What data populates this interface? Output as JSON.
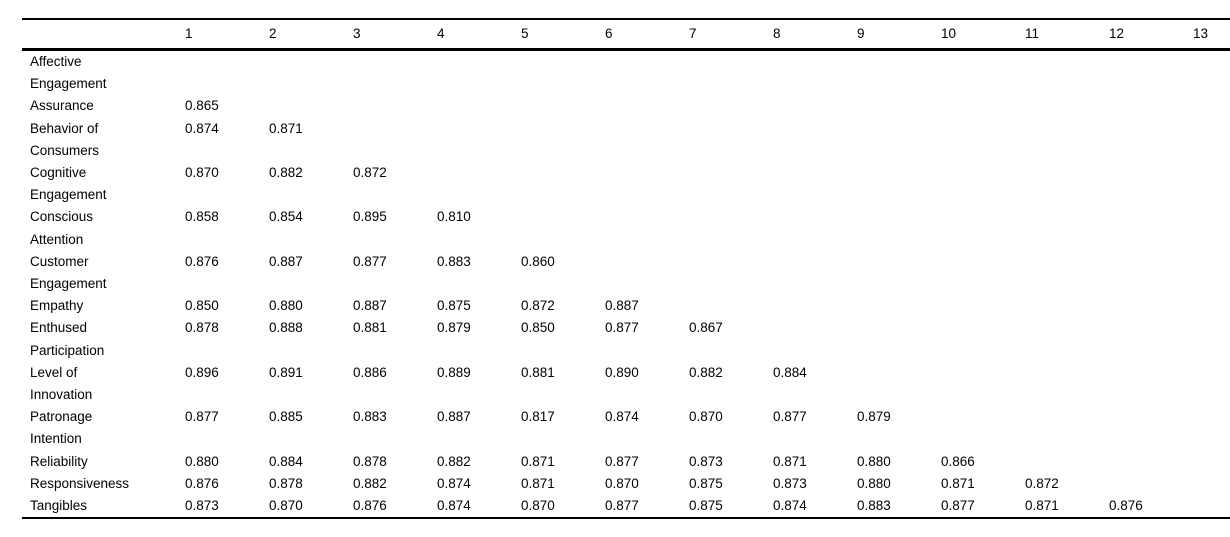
{
  "colors": {
    "background": "#ffffff",
    "text": "#000000",
    "rule": "#000000"
  },
  "table": {
    "columns": [
      "1",
      "2",
      "3",
      "4",
      "5",
      "6",
      "7",
      "8",
      "9",
      "10",
      "11",
      "12",
      "13"
    ],
    "rows": [
      {
        "label": "Affective Engagement",
        "label_lines": [
          "Affective",
          "Engagement"
        ],
        "values": []
      },
      {
        "label": "Assurance",
        "label_lines": [
          "Assurance"
        ],
        "values": [
          "0.865"
        ]
      },
      {
        "label": "Behavior of Consumers",
        "label_lines": [
          "Behavior of",
          "Consumers"
        ],
        "values": [
          "0.874",
          "0.871"
        ]
      },
      {
        "label": "Cognitive Engagement",
        "label_lines": [
          "Cognitive",
          "Engagement"
        ],
        "values": [
          "0.870",
          "0.882",
          "0.872"
        ]
      },
      {
        "label": "Conscious Attention",
        "label_lines": [
          "Conscious",
          "Attention"
        ],
        "values": [
          "0.858",
          "0.854",
          "0.895",
          "0.810"
        ]
      },
      {
        "label": "Customer Engagement",
        "label_lines": [
          "Customer",
          "Engagement"
        ],
        "values": [
          "0.876",
          "0.887",
          "0.877",
          "0.883",
          "0.860"
        ]
      },
      {
        "label": "Empathy",
        "label_lines": [
          "Empathy"
        ],
        "values": [
          "0.850",
          "0.880",
          "0.887",
          "0.875",
          "0.872",
          "0.887"
        ]
      },
      {
        "label": "Enthused Participation",
        "label_lines": [
          "Enthused",
          "Participation"
        ],
        "values": [
          "0.878",
          "0.888",
          "0.881",
          "0.879",
          "0.850",
          "0.877",
          "0.867"
        ]
      },
      {
        "label": "Level of Innovation",
        "label_lines": [
          "Level of",
          "Innovation"
        ],
        "values": [
          "0.896",
          "0.891",
          "0.886",
          "0.889",
          "0.881",
          "0.890",
          "0.882",
          "0.884"
        ]
      },
      {
        "label": "Patronage Intention",
        "label_lines": [
          "Patronage",
          "Intention"
        ],
        "values": [
          "0.877",
          "0.885",
          "0.883",
          "0.887",
          "0.817",
          "0.874",
          "0.870",
          "0.877",
          "0.879"
        ]
      },
      {
        "label": "Reliability",
        "label_lines": [
          "Reliability"
        ],
        "values": [
          "0.880",
          "0.884",
          "0.878",
          "0.882",
          "0.871",
          "0.877",
          "0.873",
          "0.871",
          "0.880",
          "0.866"
        ]
      },
      {
        "label": "Responsiveness",
        "label_lines": [
          "Responsiveness"
        ],
        "values": [
          "0.876",
          "0.878",
          "0.882",
          "0.874",
          "0.871",
          "0.870",
          "0.875",
          "0.873",
          "0.880",
          "0.871",
          "0.872"
        ]
      },
      {
        "label": "Tangibles",
        "label_lines": [
          "Tangibles"
        ],
        "values": [
          "0.873",
          "0.870",
          "0.876",
          "0.874",
          "0.870",
          "0.877",
          "0.875",
          "0.874",
          "0.883",
          "0.877",
          "0.871",
          "0.876"
        ]
      }
    ]
  }
}
